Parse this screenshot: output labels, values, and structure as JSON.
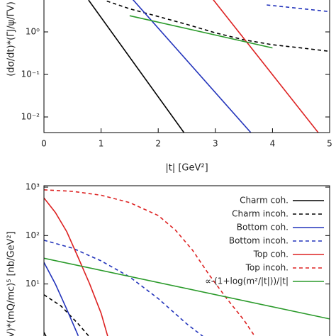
{
  "chart_data": [
    {
      "type": "line",
      "log_y": true,
      "xlabel": "|t| [GeV²]",
      "ylabel": "(dσ/dt)*(ΓJ/ψ/ΓV)",
      "xlim": [
        0,
        5
      ],
      "xticks": [
        0,
        1,
        2,
        3,
        4,
        5
      ],
      "ylim": [
        0.0043,
        10
      ],
      "yticks": [
        {
          "value": 0.01,
          "label": "10⁻²"
        },
        {
          "value": 0.1,
          "label": "10⁻¹"
        },
        {
          "value": 1,
          "label": "10⁰"
        }
      ],
      "series": [
        {
          "color": "#000000",
          "dashed": false,
          "x": [
            0.78,
            2.45
          ],
          "values": [
            5.6,
            0.0043
          ]
        },
        {
          "color": "#000000",
          "dashed": true,
          "x": [
            1.1,
            1.5,
            2,
            2.5,
            3,
            3.5,
            4,
            4.5,
            5
          ],
          "values": [
            5.3,
            3.5,
            2.3,
            1.5,
            0.95,
            0.65,
            0.5,
            0.42,
            0.35
          ]
        },
        {
          "color": "#2233bb",
          "dashed": false,
          "x": [
            1.5,
            3.62
          ],
          "values": [
            7,
            0.0043
          ]
        },
        {
          "color": "#2233bb",
          "dashed": true,
          "x": [
            3.9,
            5
          ],
          "values": [
            4.3,
            3.0
          ]
        },
        {
          "color": "#dd2222",
          "dashed": false,
          "x": [
            2.95,
            4.8
          ],
          "values": [
            6,
            0.0043
          ]
        },
        {
          "color": "#2a9a2a",
          "dashed": false,
          "x": [
            1.5,
            4
          ],
          "values": [
            2.4,
            0.42
          ]
        }
      ]
    },
    {
      "type": "line",
      "log_y": true,
      "ylabel": "ΓV)*(mQ/mc)⁵ [nb/GeV²]",
      "legend": "upper right",
      "xlim": [
        0,
        5
      ],
      "ylim": [
        0.5,
        1070
      ],
      "yticks": [
        {
          "value": 10,
          "label": "10¹"
        },
        {
          "value": 100,
          "label": "10²"
        },
        {
          "value": 1000,
          "label": "10³"
        }
      ],
      "series": [
        {
          "name": "Charm coh.",
          "color": "#000000",
          "dashed": false,
          "x": [
            0,
            0.1
          ],
          "values": [
            1,
            0.6
          ]
        },
        {
          "name": "Charm incoh.",
          "color": "#000000",
          "dashed": true,
          "x": [
            0,
            0.3,
            0.6,
            0.8
          ],
          "values": [
            6,
            3.5,
            1.5,
            0.8
          ]
        },
        {
          "name": "Bottom coh.",
          "color": "#2233bb",
          "dashed": false,
          "x": [
            0,
            0.2,
            0.4,
            0.6
          ],
          "values": [
            28,
            10,
            3,
            0.85
          ]
        },
        {
          "name": "Bottom incoh.",
          "color": "#2233bb",
          "dashed": true,
          "x": [
            0,
            0.5,
            1,
            1.5,
            2,
            2.5,
            2.8
          ],
          "values": [
            80,
            55,
            30,
            14,
            5,
            1.5,
            0.8
          ]
        },
        {
          "name": "Top coh.",
          "color": "#dd2222",
          "dashed": false,
          "x": [
            0,
            0.2,
            0.4,
            0.6,
            0.8,
            1.0,
            1.12
          ],
          "values": [
            600,
            300,
            120,
            35,
            10,
            2.5,
            0.8
          ]
        },
        {
          "name": "Top incoh.",
          "color": "#dd2222",
          "dashed": true,
          "x": [
            0,
            0.5,
            1,
            1.5,
            2,
            2.3,
            2.6,
            2.9,
            3.2,
            3.5,
            3.7
          ],
          "values": [
            880,
            820,
            680,
            480,
            260,
            130,
            50,
            15,
            5,
            1.8,
            0.8
          ]
        },
        {
          "name": "∝-(1+log(m²/|t|))/|t|",
          "color": "#2a9a2a",
          "dashed": false,
          "x": [
            0,
            5
          ],
          "values": [
            34,
            1.9
          ]
        }
      ]
    }
  ]
}
